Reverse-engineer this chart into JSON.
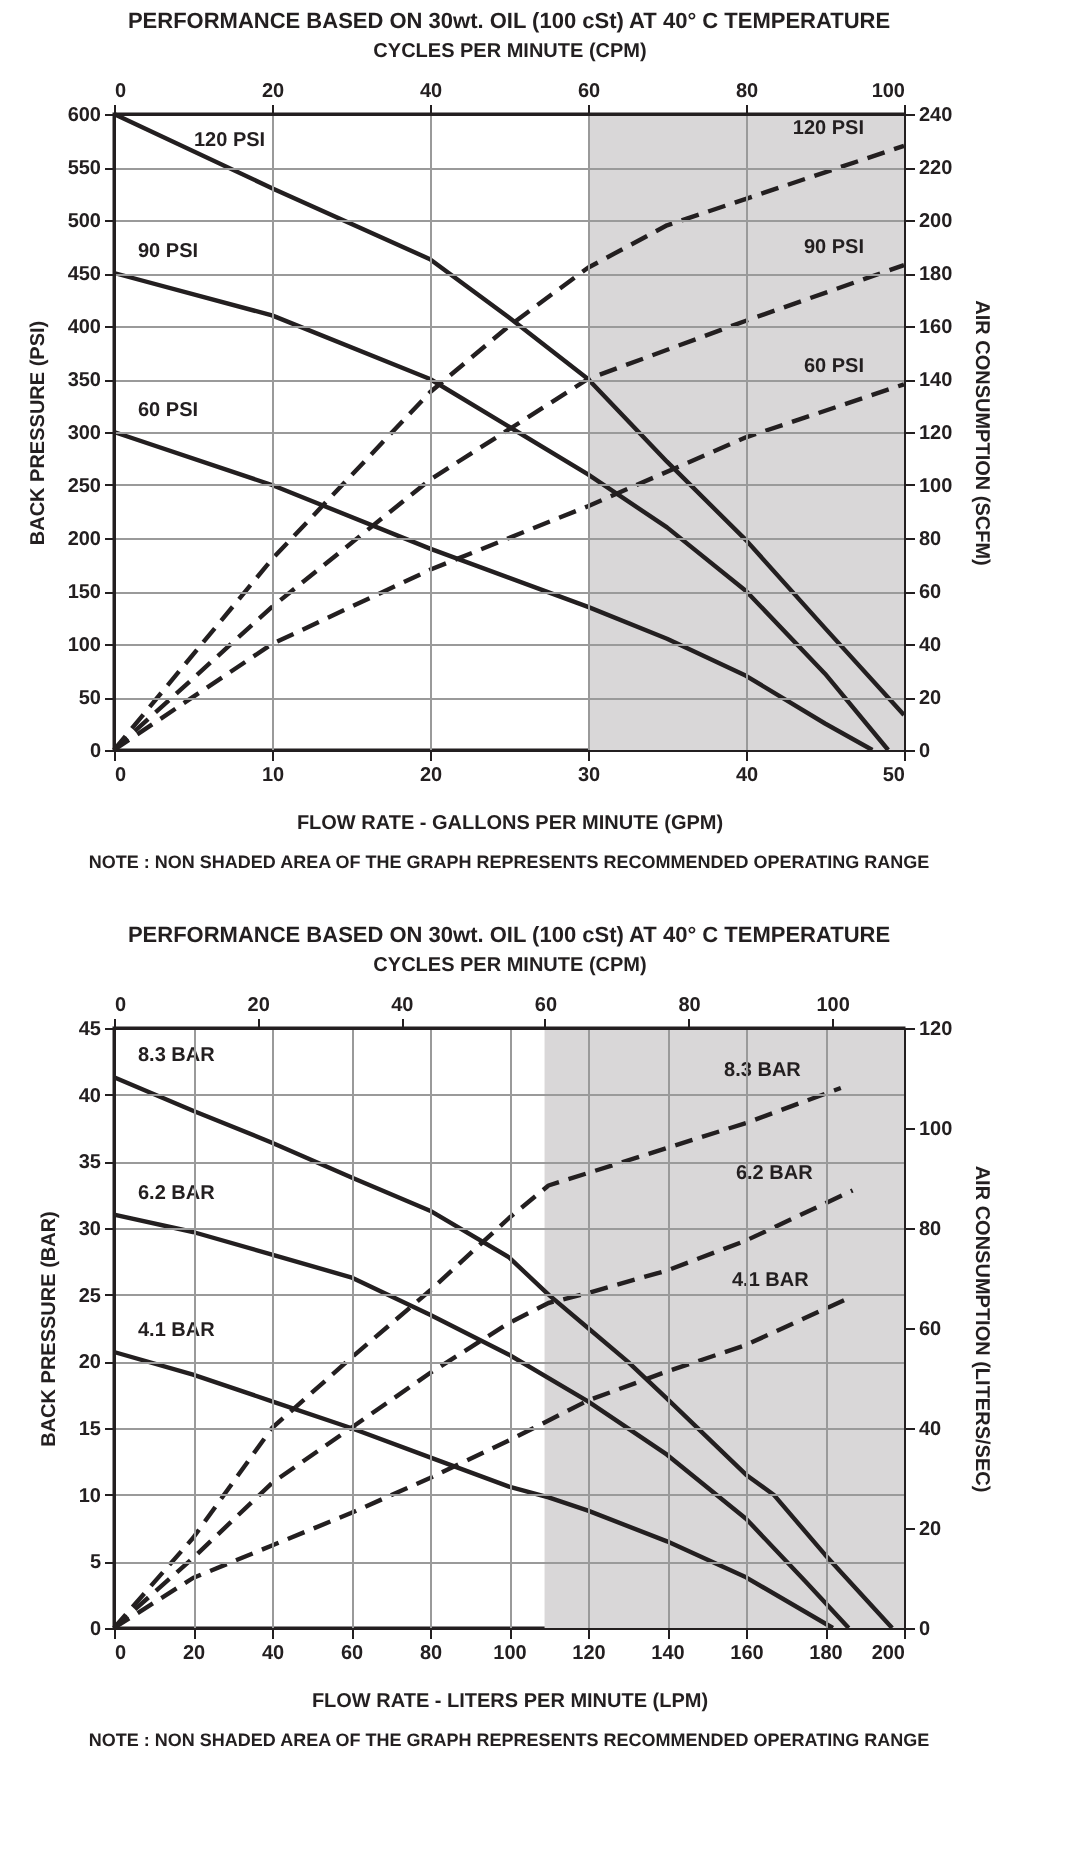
{
  "chart_data": [
    {
      "type": "line",
      "title": "PERFORMANCE  BASED ON 30wt. OIL (100 cSt) AT 40° C TEMPERATURE",
      "xlabel": "FLOW RATE - GALLONS PER MINUTE (GPM)",
      "ylabel": "BACK PRESSURE  (PSI)",
      "y2label": "AIR CONSUMPTION  (SCFM)",
      "x2label": "CYCLES PER MINUTE (CPM)",
      "xlim": [
        0,
        50
      ],
      "xticks": [
        0,
        10,
        20,
        30,
        40,
        50
      ],
      "ylim": [
        0,
        600
      ],
      "yticks": [
        0,
        50,
        100,
        150,
        200,
        250,
        300,
        350,
        400,
        450,
        500,
        550,
        600
      ],
      "y2lim": [
        0,
        240
      ],
      "y2ticks": [
        0,
        20,
        40,
        60,
        80,
        100,
        120,
        140,
        160,
        180,
        200,
        220,
        240
      ],
      "x2lim": [
        0,
        100
      ],
      "x2ticks": [
        0,
        20,
        40,
        60,
        80,
        100
      ],
      "grid": true,
      "bands": [
        {
          "axis": "x",
          "from": 30,
          "to": 50,
          "color": "#d9d7d8"
        }
      ],
      "annotations": [
        "NOTE : NON SHADED AREA OF THE GRAPH REPRESENTS RECOMMENDED OPERATING RANGE"
      ],
      "series": [
        {
          "name": "120 PSI",
          "color": "#231f20",
          "line_style": "solid",
          "x": [
            0,
            10,
            20,
            25,
            30,
            35,
            40,
            45,
            50
          ],
          "values": [
            600,
            530,
            463,
            408,
            350,
            272,
            198,
            115,
            33
          ]
        },
        {
          "name": "90 PSI",
          "color": "#231f20",
          "line_style": "solid",
          "x": [
            0,
            10,
            20,
            25,
            30,
            35,
            40,
            45,
            49
          ],
          "values": [
            450,
            410,
            350,
            305,
            260,
            210,
            150,
            72,
            0
          ]
        },
        {
          "name": "60 PSI",
          "color": "#231f20",
          "line_style": "solid",
          "x": [
            0,
            10,
            20,
            30,
            35,
            40,
            45,
            48
          ],
          "values": [
            300,
            250,
            190,
            135,
            105,
            70,
            25,
            0
          ]
        },
        {
          "name": "120 PSI",
          "color": "#231f20",
          "line_style": "dashed",
          "axis": "y2",
          "x": [
            0,
            10,
            20,
            25,
            30,
            35,
            40,
            45,
            50
          ],
          "values": [
            0,
            72,
            135,
            160,
            182,
            198,
            208,
            218,
            228
          ]
        },
        {
          "name": "90 PSI",
          "color": "#231f20",
          "line_style": "dashed",
          "axis": "y2",
          "x": [
            0,
            10,
            20,
            30,
            40,
            50
          ],
          "values": [
            0,
            54,
            102,
            140,
            162,
            183
          ]
        },
        {
          "name": "60 PSI",
          "color": "#231f20",
          "line_style": "dashed",
          "axis": "y2",
          "x": [
            0,
            10,
            20,
            30,
            40,
            50
          ],
          "values": [
            0,
            40,
            68,
            92,
            118,
            138
          ]
        }
      ]
    },
    {
      "type": "line",
      "title": "PERFORMANCE  BASED ON 30wt. OIL (100 cSt) AT 40° C TEMPERATURE",
      "xlabel": "FLOW RATE - LITERS PER MINUTE (LPM)",
      "ylabel": "BACK PRESSURE  (BAR)",
      "y2label": "AIR CONSUMPTION  (LITERS/SEC)",
      "x2label": "CYCLES PER MINUTE (CPM)",
      "xlim": [
        0,
        200
      ],
      "xticks": [
        0,
        20,
        40,
        60,
        80,
        100,
        120,
        140,
        160,
        180,
        200
      ],
      "ylim": [
        0,
        45
      ],
      "yticks": [
        0,
        5,
        10,
        15,
        20,
        25,
        30,
        35,
        40,
        45
      ],
      "y2lim": [
        0,
        120
      ],
      "y2ticks": [
        0,
        20,
        40,
        60,
        80,
        100,
        120
      ],
      "x2lim": [
        0,
        110
      ],
      "x2ticks": [
        0,
        20,
        40,
        60,
        80,
        100
      ],
      "grid": true,
      "bands": [
        {
          "axis": "x",
          "from": 109,
          "to": 200,
          "color": "#d9d7d8"
        }
      ],
      "annotations": [
        "NOTE : NON SHADED AREA OF THE GRAPH REPRESENTS RECOMMENDED OPERATING RANGE"
      ],
      "series": [
        {
          "name": "8.3 BAR",
          "color": "#231f20",
          "line_style": "solid",
          "x": [
            0,
            20,
            40,
            60,
            80,
            100,
            110,
            120,
            130,
            140,
            160,
            167,
            180,
            197
          ],
          "values": [
            41.3,
            38.8,
            36.4,
            33.8,
            31.3,
            27.8,
            25,
            22.5,
            20,
            17.2,
            11.5,
            10,
            5.5,
            0
          ]
        },
        {
          "name": "6.2 BAR",
          "color": "#231f20",
          "line_style": "solid",
          "x": [
            0,
            20,
            40,
            60,
            80,
            100,
            120,
            140,
            160,
            175,
            186
          ],
          "values": [
            31,
            29.7,
            28,
            26.3,
            23.5,
            20.5,
            17,
            13,
            8.2,
            3.5,
            0
          ]
        },
        {
          "name": "4.1 BAR",
          "color": "#231f20",
          "line_style": "solid",
          "x": [
            0,
            20,
            40,
            60,
            80,
            100,
            110,
            120,
            140,
            160,
            182
          ],
          "values": [
            20.7,
            19,
            17,
            15,
            12.8,
            10.6,
            9.8,
            8.8,
            6.5,
            3.8,
            0
          ]
        },
        {
          "name": "8.3 BAR",
          "color": "#231f20",
          "line_style": "dashed",
          "axis": "y2",
          "x": [
            0,
            20,
            40,
            60,
            80,
            100,
            110,
            120,
            140,
            160,
            184
          ],
          "values": [
            0,
            18,
            40,
            54,
            67.5,
            82,
            88.5,
            91,
            96,
            101,
            108
          ]
        },
        {
          "name": "6.2 BAR",
          "color": "#231f20",
          "line_style": "dashed",
          "axis": "y2",
          "x": [
            0,
            20,
            40,
            60,
            80,
            100,
            110,
            120,
            140,
            160,
            187
          ],
          "values": [
            0,
            14,
            29,
            40,
            51,
            61,
            65,
            67,
            71.5,
            77.5,
            87.5
          ]
        },
        {
          "name": "4.1 BAR",
          "color": "#231f20",
          "line_style": "dashed",
          "axis": "y2",
          "x": [
            0,
            20,
            40,
            60,
            80,
            100,
            120,
            140,
            160,
            186
          ],
          "values": [
            0,
            10,
            16.5,
            23,
            30,
            37.5,
            45.5,
            51.3,
            56.6,
            66
          ]
        }
      ]
    }
  ]
}
